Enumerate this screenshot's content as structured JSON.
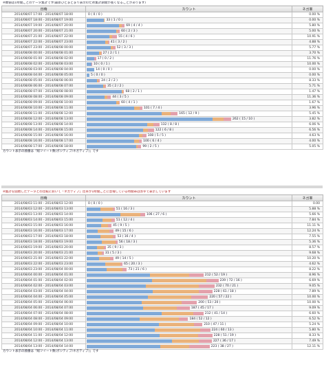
{
  "panel1": {
    "caption": "※数値は1時間ごとのデータ集計です(最新ひとまとまり表示のため集計期間が長くなることがあります)",
    "headers": {
      "time": "日時",
      "count": "カウント",
      "rate": "ネガ率"
    },
    "footer": "カウント表示の順番は「総ツイート数(ポジティブ/ネガティブ)」です",
    "max_total": 262,
    "rows": [
      {
        "time": "2014/08/07 17:00 - 2014/08/07 18:00",
        "label": "0 ( 0 / 0 )",
        "total": 0,
        "pos": 0,
        "neg": 0,
        "rate": "0.00 %"
      },
      {
        "time": "2014/08/07 18:00 - 2014/08/07 19:00",
        "label": "33 ( 1 / 0 )",
        "total": 33,
        "pos": 1,
        "neg": 0,
        "rate": "0.00 %"
      },
      {
        "time": "2014/08/07 19:00 - 2014/08/07 20:00",
        "label": "69 ( 4 / 4 )",
        "total": 69,
        "pos": 4,
        "neg": 4,
        "rate": "5.80 %"
      },
      {
        "time": "2014/08/07 20:00 - 2014/08/07 21:00",
        "label": "60 ( 2 / 3 )",
        "total": 60,
        "pos": 2,
        "neg": 3,
        "rate": "5.00 %"
      },
      {
        "time": "2014/08/07 21:00 - 2014/08/07 22:00",
        "label": "55 ( 4 / 6 )",
        "total": 55,
        "pos": 4,
        "neg": 6,
        "rate": "10.91 %"
      },
      {
        "time": "2014/08/07 22:00 - 2014/08/07 23:00",
        "label": "41 ( 3 / 2 )",
        "total": 41,
        "pos": 3,
        "neg": 2,
        "rate": "4.88 %"
      },
      {
        "time": "2014/08/07 23:00 - 2014/08/08 00:00",
        "label": "52 ( 3 / 3 )",
        "total": 52,
        "pos": 3,
        "neg": 3,
        "rate": "5.77 %"
      },
      {
        "time": "2014/08/08 00:00 - 2014/08/08 01:00",
        "label": "27 ( 2 / 1 )",
        "total": 27,
        "pos": 2,
        "neg": 1,
        "rate": "3.70 %"
      },
      {
        "time": "2014/08/08 01:00 - 2014/08/08 02:00",
        "label": "17 ( 0 / 2 )",
        "total": 17,
        "pos": 0,
        "neg": 2,
        "rate": "11.76 %"
      },
      {
        "time": "2014/08/08 02:00 - 2014/08/08 03:00",
        "label": "10 ( 0 / 1 )",
        "total": 10,
        "pos": 0,
        "neg": 1,
        "rate": "10.00 %"
      },
      {
        "time": "2014/08/08 03:00 - 2014/08/08 04:00",
        "label": "14 ( 0 / 0 )",
        "total": 14,
        "pos": 0,
        "neg": 0,
        "rate": "0.00 %"
      },
      {
        "time": "2014/08/08 04:00 - 2014/08/08 05:00",
        "label": "5 ( 0 / 0 )",
        "total": 5,
        "pos": 0,
        "neg": 0,
        "rate": "0.00 %"
      },
      {
        "time": "2014/08/08 05:00 - 2014/08/08 06:00",
        "label": "24 ( 2 / 2 )",
        "total": 24,
        "pos": 2,
        "neg": 2,
        "rate": "8.33 %"
      },
      {
        "time": "2014/08/08 06:00 - 2014/08/08 07:00",
        "label": "35 ( 2 / 2 )",
        "total": 35,
        "pos": 2,
        "neg": 2,
        "rate": "5.71 %"
      },
      {
        "time": "2014/08/08 07:00 - 2014/08/08 08:00",
        "label": "68 ( 2 / 1 )",
        "total": 68,
        "pos": 2,
        "neg": 1,
        "rate": "1.47 %"
      },
      {
        "time": "2014/08/08 08:00 - 2014/08/08 09:00",
        "label": "44 ( 3 / 5 )",
        "total": 44,
        "pos": 3,
        "neg": 5,
        "rate": "11.36 %"
      },
      {
        "time": "2014/08/08 09:00 - 2014/08/08 10:00",
        "label": "60 ( 4 / 1 )",
        "total": 60,
        "pos": 4,
        "neg": 1,
        "rate": "1.67 %"
      },
      {
        "time": "2014/08/08 10:00 - 2014/08/08 11:00",
        "label": "101 ( 7 / 4 )",
        "total": 101,
        "pos": 7,
        "neg": 4,
        "rate": "3.96 %"
      },
      {
        "time": "2014/08/08 11:00 - 2014/08/08 12:00",
        "label": "165 ( 12 / 9 )",
        "total": 165,
        "pos": 12,
        "neg": 9,
        "rate": "5.45 %"
      },
      {
        "time": "2014/08/08 12:00 - 2014/08/08 13:00",
        "label": "262 ( 15 / 10 )",
        "total": 262,
        "pos": 15,
        "neg": 10,
        "rate": "3.82 %"
      },
      {
        "time": "2014/08/08 13:00 - 2014/08/08 14:00",
        "label": "132 ( 8 / 8 )",
        "total": 132,
        "pos": 8,
        "neg": 8,
        "rate": "6.06 %"
      },
      {
        "time": "2014/08/08 14:00 - 2014/08/08 15:00",
        "label": "122 ( 6 / 8 )",
        "total": 122,
        "pos": 6,
        "neg": 8,
        "rate": "6.56 %"
      },
      {
        "time": "2014/08/08 15:00 - 2014/08/08 16:00",
        "label": "108 ( 5 / 5 )",
        "total": 108,
        "pos": 5,
        "neg": 5,
        "rate": "4.63 %"
      },
      {
        "time": "2014/08/08 16:00 - 2014/08/08 17:00",
        "label": "100 ( 6 / 4 )",
        "total": 100,
        "pos": 6,
        "neg": 4,
        "rate": "4.00 %"
      },
      {
        "time": "2014/08/08 17:00 - 2014/08/08 18:00",
        "label": "99 ( 2 / 5 )",
        "total": 99,
        "pos": 2,
        "neg": 5,
        "rate": "5.05 %"
      }
    ]
  },
  "panel2": {
    "caption": "※集計を開始したデータとの比較において「ネガティブ」比率が1時間ごとに急増している時間帯は赤字で表示しています",
    "headers": {
      "time": "日時",
      "count": "カウント",
      "rate": "ネガ率"
    },
    "footer": "カウント表示の順番は「総ツイート数(ポジティブ/ネガティブ)」です",
    "max_total": 262,
    "rows": [
      {
        "time": "2014/08/03 11:00 - 2014/08/03 12:00",
        "label": "0 ( 0 / 0 )",
        "total": 0,
        "pos": 0,
        "neg": 0,
        "rate": "0.00"
      },
      {
        "time": "2014/08/03 12:00 - 2014/08/03 13:00",
        "label": "51 ( 16 / 3 )",
        "total": 51,
        "pos": 16,
        "neg": 3,
        "rate": "5.88 %"
      },
      {
        "time": "2014/08/03 13:00 - 2014/08/03 14:00",
        "label": "106 ( 27 / 6 )",
        "total": 106,
        "pos": 27,
        "neg": 6,
        "rate": "5.66 %"
      },
      {
        "time": "2014/08/03 14:00 - 2014/08/03 15:00",
        "label": "51 ( 12 / 4 )",
        "total": 51,
        "pos": 12,
        "neg": 4,
        "rate": "7.84 %"
      },
      {
        "time": "2014/08/03 15:00 - 2014/08/03 16:00",
        "label": "45 ( 9 / 5 )",
        "total": 45,
        "pos": 9,
        "neg": 5,
        "rate": "11.11 %"
      },
      {
        "time": "2014/08/03 16:00 - 2014/08/03 17:00",
        "label": "49 ( 15 / 6 )",
        "total": 49,
        "pos": 15,
        "neg": 6,
        "rate": "12.24 %"
      },
      {
        "time": "2014/08/03 17:00 - 2014/08/03 18:00",
        "label": "53 ( 16 / 4 )",
        "total": 53,
        "pos": 16,
        "neg": 4,
        "rate": "7.55 %"
      },
      {
        "time": "2014/08/03 18:00 - 2014/08/03 19:00",
        "label": "56 ( 18 / 3 )",
        "total": 56,
        "pos": 18,
        "neg": 3,
        "rate": "5.36 %"
      },
      {
        "time": "2014/08/03 19:00 - 2014/08/03 20:00",
        "label": "35 ( 9 / 3 )",
        "total": 35,
        "pos": 9,
        "neg": 3,
        "rate": "8.57 %"
      },
      {
        "time": "2014/08/03 20:00 - 2014/08/03 21:00",
        "label": "31 ( 5 / 3 )",
        "total": 31,
        "pos": 5,
        "neg": 3,
        "rate": "9.68 %"
      },
      {
        "time": "2014/08/03 21:00 - 2014/08/03 22:00",
        "label": "49 ( 14 / 5 )",
        "total": 49,
        "pos": 14,
        "neg": 5,
        "rate": "10.20 %"
      },
      {
        "time": "2014/08/03 22:00 - 2014/08/03 23:00",
        "label": "65 ( 20 / 3 )",
        "total": 65,
        "pos": 20,
        "neg": 3,
        "rate": "4.62 %"
      },
      {
        "time": "2014/08/03 23:00 - 2014/08/04 00:00",
        "label": "73 ( 21 / 6 )",
        "total": 73,
        "pos": 21,
        "neg": 6,
        "rate": "8.22 %"
      },
      {
        "time": "2014/08/04 00:00 - 2014/08/04 01:00",
        "label": "212 ( 52 / 19 )",
        "total": 212,
        "pos": 52,
        "neg": 19,
        "rate": "8.96 %"
      },
      {
        "time": "2014/08/04 01:00 - 2014/08/04 02:00",
        "label": "239 ( 72 / 16 )",
        "total": 239,
        "pos": 72,
        "neg": 16,
        "rate": "6.69 %"
      },
      {
        "time": "2014/08/04 02:00 - 2014/08/04 03:00",
        "label": "232 ( 70 / 21 )",
        "total": 232,
        "pos": 70,
        "neg": 21,
        "rate": "9.05 %"
      },
      {
        "time": "2014/08/04 03:00 - 2014/08/04 04:00",
        "label": "228 ( 61 / 18 )",
        "total": 228,
        "pos": 61,
        "neg": 18,
        "rate": "7.89 %"
      },
      {
        "time": "2014/08/04 04:00 - 2014/08/04 05:00",
        "label": "220 ( 57 / 22 )",
        "total": 220,
        "pos": 57,
        "neg": 22,
        "rate": "10.00 %"
      },
      {
        "time": "2014/08/04 05:00 - 2014/08/04 06:00",
        "label": "200 ( 53 / 20 )",
        "total": 200,
        "pos": 53,
        "neg": 20,
        "rate": "10.00 %"
      },
      {
        "time": "2014/08/04 06:00 - 2014/08/04 07:00",
        "label": "187 ( 45 / 17 )",
        "total": 187,
        "pos": 45,
        "neg": 17,
        "rate": "9.09 %"
      },
      {
        "time": "2014/08/04 07:00 - 2014/08/04 08:00",
        "label": "212 ( 41 / 14 )",
        "total": 212,
        "pos": 41,
        "neg": 14,
        "rate": "6.60 %"
      },
      {
        "time": "2014/08/04 08:00 - 2014/08/04 09:00",
        "label": "184 ( 52 / 12 )",
        "total": 184,
        "pos": 52,
        "neg": 12,
        "rate": "6.52 %"
      },
      {
        "time": "2014/08/04 09:00 - 2014/08/04 10:00",
        "label": "210 ( 47 / 11 )",
        "total": 210,
        "pos": 47,
        "neg": 11,
        "rate": "5.24 %"
      },
      {
        "time": "2014/08/04 10:00 - 2014/08/04 11:00",
        "label": "224 ( 60 / 13 )",
        "total": 224,
        "pos": 60,
        "neg": 13,
        "rate": "5.80 %"
      },
      {
        "time": "2014/08/04 11:00 - 2014/08/04 12:00",
        "label": "228 ( 51 / 19 )",
        "total": 228,
        "pos": 51,
        "neg": 19,
        "rate": "8.33 %"
      },
      {
        "time": "2014/08/04 12:00 - 2014/08/04 13:00",
        "label": "227 ( 36 / 17 )",
        "total": 227,
        "pos": 36,
        "neg": 17,
        "rate": "7.49 %"
      },
      {
        "time": "2014/08/04 13:00 - 2014/08/04 14:00",
        "label": "223 ( 38 / 27 )",
        "total": 223,
        "pos": 38,
        "neg": 27,
        "rate": "12.11 %"
      }
    ]
  },
  "colors": {
    "total": "#7fa9d8",
    "pos": "#eab27a",
    "neg": "#e3a0ab"
  }
}
